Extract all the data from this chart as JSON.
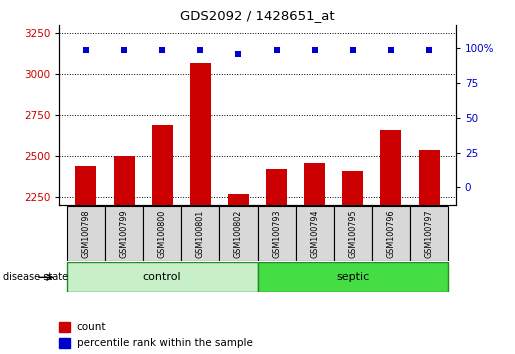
{
  "title": "GDS2092 / 1428651_at",
  "samples": [
    "GSM100798",
    "GSM100799",
    "GSM100800",
    "GSM100801",
    "GSM100802",
    "GSM100793",
    "GSM100794",
    "GSM100795",
    "GSM100796",
    "GSM100797"
  ],
  "counts": [
    2440,
    2500,
    2690,
    3070,
    2270,
    2420,
    2460,
    2410,
    2660,
    2540
  ],
  "percentile_ranks": [
    99,
    99,
    99,
    99,
    96,
    99,
    99,
    99,
    99,
    99
  ],
  "groups": [
    "control",
    "control",
    "control",
    "control",
    "control",
    "septic",
    "septic",
    "septic",
    "septic",
    "septic"
  ],
  "bar_color": "#cc0000",
  "dot_color": "#0000cc",
  "ylim_left": [
    2200,
    3300
  ],
  "yticks_left": [
    2250,
    2500,
    2750,
    3000,
    3250
  ],
  "ylim_right": [
    -13,
    117
  ],
  "yticks_right": [
    0,
    25,
    50,
    75,
    100
  ],
  "control_light": "#c8f0c8",
  "control_dark": "#228B22",
  "septic_light": "#44dd44",
  "septic_dark": "#228B22",
  "sample_box_color": "#d8d8d8",
  "group_label": "disease state",
  "legend_count_label": "count",
  "legend_pct_label": "percentile rank within the sample",
  "background_color": "#ffffff",
  "grid_color": "#000000"
}
